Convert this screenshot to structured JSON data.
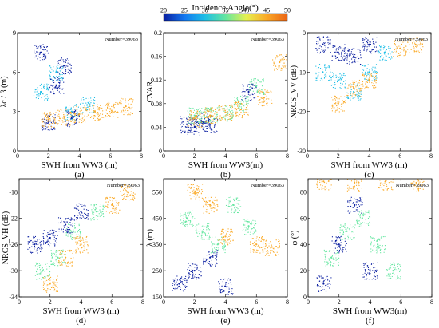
{
  "colorbar": {
    "title": "Incidence Angle(°)",
    "ticks": [
      "20",
      "25",
      "30",
      "35",
      "40",
      "45",
      "50"
    ],
    "colors": [
      "#0a1ea0",
      "#1478f0",
      "#1ebee6",
      "#64e6a0",
      "#e6f050",
      "#faaa28",
      "#eb6414"
    ]
  },
  "chart_data": [
    {
      "type": "scatter",
      "panel": "(a)",
      "xlabel": "SWH from WW3 (m)",
      "ylabel": "λc / β (m)",
      "annotation": "Number=39063",
      "xlim": [
        0,
        8
      ],
      "ylim": [
        0,
        9
      ],
      "xticks": [
        0,
        2,
        4,
        6,
        8
      ],
      "yticks": [
        0,
        3,
        6,
        9
      ],
      "series": [
        {
          "angle": 22,
          "x": [
            1.5,
            2.5,
            3.5,
            2.0,
            3.0
          ],
          "y": [
            7.5,
            5.0,
            2.5,
            2.2,
            6.5
          ]
        },
        {
          "angle": 32,
          "x": [
            1.5,
            2.5,
            3.5,
            4.5
          ],
          "y": [
            4.5,
            6.0,
            3.0,
            3.5
          ]
        },
        {
          "angle": 45,
          "x": [
            2.0,
            3.0,
            4.0,
            5.0,
            6.0,
            7.0
          ],
          "y": [
            2.4,
            2.6,
            2.8,
            3.0,
            3.2,
            3.4
          ]
        }
      ]
    },
    {
      "type": "scatter",
      "panel": "(b)",
      "xlabel": "SWH from WW3(m)",
      "ylabel": "CVAR",
      "annotation": "Number=39063",
      "xlim": [
        0,
        8
      ],
      "ylim": [
        0,
        0.2
      ],
      "xticks": [
        0,
        2,
        4,
        6,
        8
      ],
      "yticks": [
        0,
        0.04,
        0.08,
        0.12,
        0.16,
        0.2
      ],
      "series": [
        {
          "angle": 22,
          "x": [
            1.5,
            2.0,
            2.5,
            3.0,
            5.5
          ],
          "y": [
            0.045,
            0.04,
            0.05,
            0.045,
            0.1
          ]
        },
        {
          "angle": 35,
          "x": [
            2.0,
            3.0,
            4.0,
            5.0,
            6.0
          ],
          "y": [
            0.06,
            0.06,
            0.065,
            0.08,
            0.11
          ]
        },
        {
          "angle": 46,
          "x": [
            2.0,
            3.0,
            4.0,
            5.0,
            6.5,
            7.5
          ],
          "y": [
            0.055,
            0.06,
            0.065,
            0.07,
            0.09,
            0.15
          ]
        }
      ]
    },
    {
      "type": "scatter",
      "panel": "(c)",
      "xlabel": "SWH from WW3 (m)",
      "ylabel": "NRCS_VV (dB)",
      "annotation": "Number=39063",
      "xlim": [
        0,
        8
      ],
      "ylim": [
        -30,
        0
      ],
      "xticks": [
        0,
        2,
        4,
        6,
        8
      ],
      "yticks": [
        -30,
        -20,
        -10,
        0
      ],
      "series": [
        {
          "angle": 22,
          "x": [
            1.0,
            2.0,
            3.0,
            4.0
          ],
          "y": [
            -3,
            -5,
            -6,
            -3
          ]
        },
        {
          "angle": 32,
          "x": [
            1.0,
            2.0,
            3.0,
            4.0,
            5.0
          ],
          "y": [
            -10,
            -12,
            -15,
            -10,
            -5
          ]
        },
        {
          "angle": 45,
          "x": [
            2.0,
            3.0,
            4.0,
            6.0,
            7.0
          ],
          "y": [
            -18,
            -14,
            -12,
            -4,
            -3
          ]
        }
      ]
    },
    {
      "type": "scatter",
      "panel": "(d)",
      "xlabel": "SWH from WW3 (m)",
      "ylabel": "NRCS_VH (dB)",
      "annotation": "Number=39063",
      "xlim": [
        0,
        8
      ],
      "ylim": [
        -34,
        -16
      ],
      "xticks": [
        0,
        2,
        4,
        6,
        8
      ],
      "yticks": [
        -34,
        -30,
        -26,
        -22,
        -18
      ],
      "series": [
        {
          "angle": 22,
          "x": [
            1.0,
            2.0,
            3.0,
            4.0
          ],
          "y": [
            -26,
            -25,
            -23,
            -21
          ]
        },
        {
          "angle": 35,
          "x": [
            1.5,
            2.5,
            3.5,
            5.0
          ],
          "y": [
            -30,
            -28,
            -24,
            -21
          ]
        },
        {
          "angle": 46,
          "x": [
            2.0,
            3.0,
            4.0,
            6.0,
            7.0
          ],
          "y": [
            -32,
            -28,
            -26,
            -20,
            -18
          ]
        }
      ]
    },
    {
      "type": "scatter",
      "panel": "(e)",
      "xlabel": "SWH from WW3 (m)",
      "ylabel": "λ (m)",
      "annotation": "Number=39063",
      "xlim": [
        0,
        8
      ],
      "ylim": [
        150,
        600
      ],
      "xticks": [
        0,
        2,
        4,
        6,
        8
      ],
      "yticks": [
        150,
        250,
        350,
        450,
        550
      ],
      "series": [
        {
          "angle": 22,
          "x": [
            1.0,
            2.0,
            3.0,
            4.0
          ],
          "y": [
            200,
            250,
            300,
            190
          ]
        },
        {
          "angle": 35,
          "x": [
            1.5,
            2.5,
            3.5,
            4.5,
            5.5
          ],
          "y": [
            450,
            400,
            350,
            500,
            420
          ]
        },
        {
          "angle": 46,
          "x": [
            2.0,
            3.0,
            4.0,
            6.0,
            7.0
          ],
          "y": [
            550,
            500,
            380,
            350,
            340
          ]
        }
      ]
    },
    {
      "type": "scatter",
      "panel": "(f)",
      "xlabel": "SWH from WW3(m)",
      "ylabel": "φ (°)",
      "annotation": "Number=39063",
      "xlim": [
        0,
        8
      ],
      "ylim": [
        0,
        90
      ],
      "xticks": [
        0,
        2,
        4,
        6,
        8
      ],
      "yticks": [
        0,
        20,
        40,
        60,
        80
      ],
      "series": [
        {
          "angle": 22,
          "x": [
            1.0,
            2.0,
            3.0,
            4.0
          ],
          "y": [
            10,
            40,
            70,
            20
          ]
        },
        {
          "angle": 35,
          "x": [
            1.5,
            2.5,
            3.5,
            4.5,
            5.5
          ],
          "y": [
            30,
            50,
            60,
            40,
            20
          ]
        },
        {
          "angle": 46,
          "x": [
            1.0,
            3.0,
            5.0,
            7.0
          ],
          "y": [
            88,
            87,
            88,
            87
          ]
        }
      ]
    }
  ]
}
